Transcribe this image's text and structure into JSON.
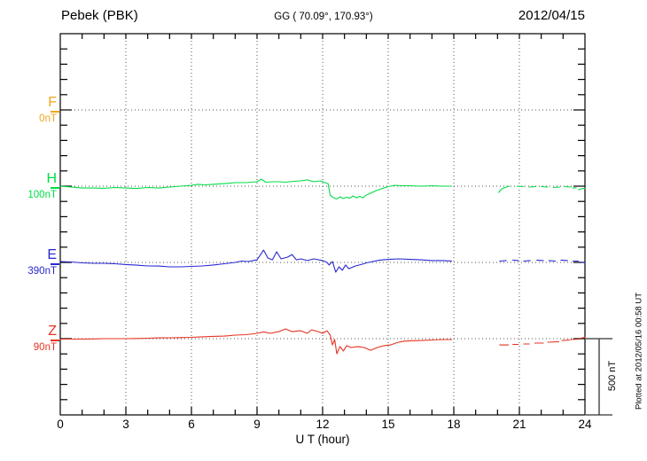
{
  "header": {
    "station": "Pebek (PBK)",
    "coords": "GG ( 70.09°, 170.93°)",
    "date": "2012/04/15"
  },
  "scale_bar": {
    "label": "500 nT"
  },
  "footer_note": "Plotted at 2012/05/16 00:58 UT",
  "chart_data": {
    "type": "line",
    "title": "Pebek (PBK)",
    "subtitle": "GG ( 70.09°, 170.93°)",
    "date": "2012/04/15",
    "xlabel": "U T (hour)",
    "x_range": [
      0,
      24
    ],
    "x_ticks": [
      0,
      3,
      6,
      9,
      12,
      15,
      18,
      21,
      24
    ],
    "x_minor_tick_hours": 1,
    "nT_per_division": 500,
    "y_scale": "500 nT per component division",
    "grid": "dotted vertical lines every 3 h, dotted horizontal line at each component baseline",
    "legend_position": "left margin component letters",
    "data_gap_hours": [
      18,
      20
    ],
    "series": [
      {
        "name": "F",
        "unit_label": "0nT",
        "base_nT": 0,
        "color": "#efa51b",
        "segments": []
      },
      {
        "name": "H",
        "unit_label": "100nT",
        "base_nT": 100,
        "color": "#00dc46",
        "segments": [
          [
            [
              0,
              100
            ],
            [
              0.5,
              95
            ],
            [
              1,
              88
            ],
            [
              1.5,
              88
            ],
            [
              2,
              86
            ],
            [
              2.5,
              91
            ],
            [
              3,
              88
            ],
            [
              3.5,
              85
            ],
            [
              4,
              91
            ],
            [
              4.5,
              88
            ],
            [
              5,
              94
            ],
            [
              5.5,
              100
            ],
            [
              6,
              106
            ],
            [
              6.3,
              112
            ],
            [
              6.6,
              109
            ],
            [
              7,
              112
            ],
            [
              7.5,
              117
            ],
            [
              8,
              123
            ],
            [
              8.5,
              123
            ],
            [
              9,
              129
            ],
            [
              9.2,
              146
            ],
            [
              9.4,
              126
            ],
            [
              9.7,
              129
            ],
            [
              10,
              129
            ],
            [
              10.3,
              126
            ],
            [
              10.7,
              132
            ],
            [
              11,
              135
            ],
            [
              11.3,
              141
            ],
            [
              11.6,
              129
            ],
            [
              11.9,
              135
            ],
            [
              12.1,
              123
            ],
            [
              12.25,
              117
            ],
            [
              12.35,
              40
            ],
            [
              12.5,
              24
            ],
            [
              12.65,
              16
            ],
            [
              12.8,
              30
            ],
            [
              12.95,
              19
            ],
            [
              13.1,
              27
            ],
            [
              13.25,
              22
            ],
            [
              13.4,
              36
            ],
            [
              13.55,
              24
            ],
            [
              13.7,
              33
            ],
            [
              13.85,
              24
            ],
            [
              14,
              42
            ],
            [
              14.2,
              54
            ],
            [
              14.4,
              68
            ],
            [
              14.7,
              83
            ],
            [
              15,
              97
            ],
            [
              15.3,
              106
            ],
            [
              15.6,
              103
            ],
            [
              16,
              103
            ],
            [
              16.5,
              100
            ],
            [
              17,
              103
            ],
            [
              17.5,
              100
            ],
            [
              17.9,
              100
            ]
          ],
          [
            [
              20.05,
              59
            ],
            [
              20.2,
              83
            ],
            [
              20.4,
              94
            ],
            [
              20.55,
              100
            ]
          ],
          [
            [
              20.9,
              100
            ],
            [
              21.2,
              97
            ]
          ],
          [
            [
              21.45,
              94
            ],
            [
              21.75,
              97
            ]
          ],
          [
            [
              22,
              97
            ],
            [
              22.3,
              94
            ]
          ],
          [
            [
              22.55,
              91
            ],
            [
              22.85,
              94
            ]
          ],
          [
            [
              23.05,
              97
            ],
            [
              23.35,
              94
            ]
          ],
          [
            [
              23.45,
              88
            ],
            [
              23.6,
              89
            ]
          ],
          [
            [
              23.7,
              77
            ],
            [
              23.85,
              83
            ],
            [
              24,
              86
            ]
          ]
        ]
      },
      {
        "name": "E",
        "unit_label": "390nT",
        "base_nT": 390,
        "color": "#2828d2",
        "segments": [
          [
            [
              0,
              396
            ],
            [
              0.5,
              393
            ],
            [
              1,
              387
            ],
            [
              1.5,
              384
            ],
            [
              2,
              384
            ],
            [
              2.5,
              381
            ],
            [
              3,
              376
            ],
            [
              3.5,
              372
            ],
            [
              4,
              367
            ],
            [
              4.5,
              366
            ],
            [
              5,
              361
            ],
            [
              5.5,
              361
            ],
            [
              6,
              364
            ],
            [
              6.5,
              367
            ],
            [
              7,
              373
            ],
            [
              7.5,
              381
            ],
            [
              8,
              390
            ],
            [
              8.3,
              399
            ],
            [
              8.6,
              396
            ],
            [
              9,
              407
            ],
            [
              9.3,
              471
            ],
            [
              9.5,
              419
            ],
            [
              9.7,
              407
            ],
            [
              9.9,
              460
            ],
            [
              10.1,
              413
            ],
            [
              10.4,
              425
            ],
            [
              10.6,
              442
            ],
            [
              10.8,
              407
            ],
            [
              11,
              413
            ],
            [
              11.3,
              402
            ],
            [
              11.6,
              413
            ],
            [
              12,
              402
            ],
            [
              12.2,
              390
            ],
            [
              12.3,
              373
            ],
            [
              12.45,
              396
            ],
            [
              12.6,
              326
            ],
            [
              12.75,
              361
            ],
            [
              12.9,
              338
            ],
            [
              13.05,
              373
            ],
            [
              13.2,
              349
            ],
            [
              13.5,
              367
            ],
            [
              13.8,
              378
            ],
            [
              14,
              387
            ],
            [
              14.3,
              396
            ],
            [
              14.6,
              405
            ],
            [
              15,
              410
            ],
            [
              15.5,
              413
            ],
            [
              16,
              410
            ],
            [
              16.5,
              407
            ],
            [
              17,
              402
            ],
            [
              17.5,
              402
            ],
            [
              17.9,
              399
            ]
          ],
          [
            [
              20.1,
              399
            ],
            [
              20.4,
              402
            ]
          ],
          [
            [
              20.7,
              405
            ],
            [
              20.95,
              402
            ]
          ],
          [
            [
              21.2,
              399
            ],
            [
              21.5,
              402
            ]
          ],
          [
            [
              21.8,
              405
            ],
            [
              22.1,
              402
            ]
          ],
          [
            [
              22.35,
              402
            ],
            [
              22.65,
              399
            ]
          ],
          [
            [
              22.9,
              405
            ],
            [
              23.2,
              402
            ]
          ],
          [
            [
              23.45,
              399
            ],
            [
              23.7,
              399
            ]
          ],
          [
            [
              23.8,
              393
            ],
            [
              24,
              387
            ]
          ]
        ]
      },
      {
        "name": "Z",
        "unit_label": "90nT",
        "base_nT": 90,
        "color": "#e63322",
        "segments": [
          [
            [
              0,
              87
            ],
            [
              0.5,
              87
            ],
            [
              1,
              87
            ],
            [
              1.5,
              88
            ],
            [
              2,
              90
            ],
            [
              2.5,
              90
            ],
            [
              3,
              90
            ],
            [
              3.5,
              91
            ],
            [
              4,
              93
            ],
            [
              4.5,
              95
            ],
            [
              5,
              96
            ],
            [
              5.5,
              97
            ],
            [
              6,
              99
            ],
            [
              6.5,
              102
            ],
            [
              7,
              105
            ],
            [
              7.5,
              107
            ],
            [
              8,
              113
            ],
            [
              8.5,
              116
            ],
            [
              9,
              125
            ],
            [
              9.3,
              134
            ],
            [
              9.6,
              125
            ],
            [
              10,
              136
            ],
            [
              10.3,
              154
            ],
            [
              10.6,
              136
            ],
            [
              11,
              142
            ],
            [
              11.3,
              125
            ],
            [
              11.5,
              148
            ],
            [
              11.8,
              136
            ],
            [
              12,
              125
            ],
            [
              12.2,
              142
            ],
            [
              12.35,
              113
            ],
            [
              12.45,
              49
            ],
            [
              12.55,
              84
            ],
            [
              12.65,
              -9
            ],
            [
              12.8,
              38
            ],
            [
              12.95,
              9
            ],
            [
              13.1,
              44
            ],
            [
              13.3,
              32
            ],
            [
              13.6,
              38
            ],
            [
              13.9,
              32
            ],
            [
              14.2,
              14
            ],
            [
              14.5,
              32
            ],
            [
              14.8,
              44
            ],
            [
              15.1,
              49
            ],
            [
              15.4,
              64
            ],
            [
              15.7,
              73
            ],
            [
              16,
              76
            ],
            [
              16.5,
              78
            ],
            [
              17,
              81
            ],
            [
              17.5,
              84
            ],
            [
              17.9,
              84
            ]
          ],
          [
            [
              20.1,
              49
            ],
            [
              20.5,
              49
            ]
          ],
          [
            [
              20.7,
              52
            ],
            [
              20.95,
              52
            ]
          ],
          [
            [
              21.2,
              55
            ],
            [
              21.45,
              55
            ]
          ],
          [
            [
              21.7,
              61
            ],
            [
              22.1,
              61
            ]
          ],
          [
            [
              22.3,
              67
            ],
            [
              22.8,
              70
            ]
          ],
          [
            [
              22.95,
              78
            ],
            [
              23.3,
              81
            ]
          ],
          [
            [
              23.35,
              84
            ],
            [
              23.75,
              87
            ]
          ],
          [
            [
              23.8,
              93
            ],
            [
              24,
              99
            ]
          ]
        ]
      }
    ]
  }
}
